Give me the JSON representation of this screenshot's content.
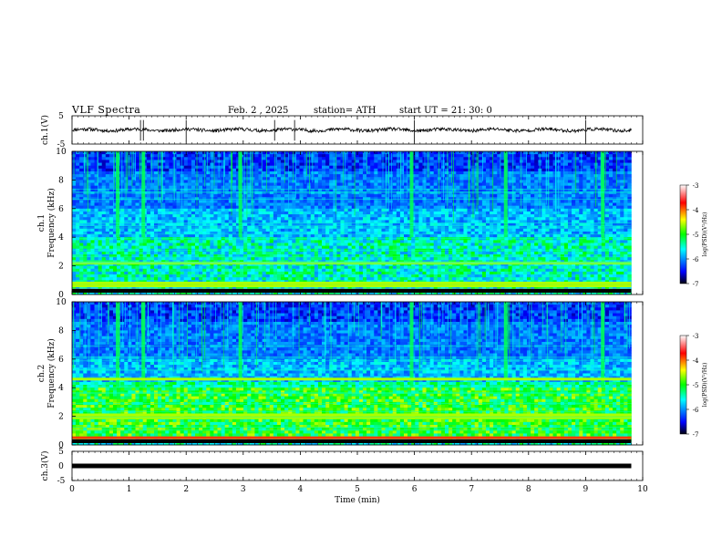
{
  "header": {
    "title": "VLF  Spectra",
    "date": "Feb. 2  , 2025",
    "station": "station= ATH",
    "start": "start  UT  =   21: 30: 0"
  },
  "chart_data": [
    {
      "type": "line",
      "name": "ch.1 waveform",
      "ylabel": "ch.1(V)",
      "ylim": [
        -5,
        5
      ],
      "yticks": [
        "5",
        "-5"
      ],
      "xlim": [
        0,
        10
      ],
      "approx_level": 0.0,
      "spike_times": [
        1.2,
        1.25,
        2.0,
        3.55,
        3.9,
        6.0,
        9.0
      ],
      "color": "#000000"
    },
    {
      "type": "heatmap",
      "name": "ch.1 spectrogram",
      "ylabel": "ch.1 Frequency  (kHz)",
      "ylim": [
        0,
        10
      ],
      "yticks": [
        "0",
        "2",
        "4",
        "6",
        "8",
        "10"
      ],
      "xlim": [
        0,
        9.8
      ],
      "colorbar": {
        "label": "log(PSD)(V²/Hz)",
        "range": [
          -7,
          -3
        ],
        "ticks": [
          "-3",
          "-4",
          "-5",
          "-6",
          "-7"
        ]
      },
      "strong_bands_khz": [
        0.3,
        0.6,
        0.8,
        2.2
      ],
      "broadband_events_min": [
        0.8,
        1.25,
        2.95,
        5.95,
        7.6,
        9.3
      ]
    },
    {
      "type": "heatmap",
      "name": "ch.2 spectrogram",
      "ylabel": "ch.2 Frequency  (kHz)",
      "ylim": [
        0,
        10
      ],
      "yticks": [
        "0",
        "2",
        "4",
        "6",
        "8",
        "10"
      ],
      "xlim": [
        0,
        9.8
      ],
      "colorbar": {
        "label": "log(PSD)(V²/Hz)",
        "range": [
          -7,
          -3
        ],
        "ticks": [
          "-3",
          "-4",
          "-5",
          "-6",
          "-7"
        ]
      },
      "strong_bands_khz": [
        0.5,
        1.9,
        2.1,
        4.6
      ],
      "broadband_events_min": [
        0.8,
        1.25,
        2.95,
        5.95,
        7.6,
        9.3
      ]
    },
    {
      "type": "line",
      "name": "ch.3 waveform",
      "ylabel": "ch.3(V)",
      "ylim": [
        -5,
        5
      ],
      "yticks": [
        "5",
        "0",
        "-5"
      ],
      "xlim": [
        0,
        10
      ],
      "approx_level": 0.0,
      "color": "#000000"
    }
  ],
  "xaxis": {
    "label": "Time  (min)",
    "ticks": [
      "0",
      "1",
      "2",
      "3",
      "4",
      "5",
      "6",
      "7",
      "8",
      "9",
      "10"
    ]
  },
  "colors": {
    "colormap": [
      "#000010",
      "#0000ff",
      "#00ffff",
      "#00ff00",
      "#ffff00",
      "#ff0000",
      "#ffffff"
    ]
  }
}
